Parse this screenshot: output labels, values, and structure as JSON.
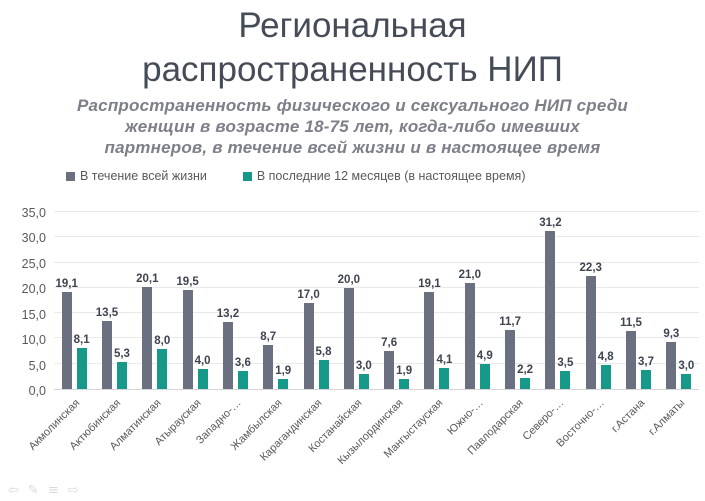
{
  "slide": {
    "title": {
      "text": "Региональная распространенность НИП",
      "lines": [
        "Региональная",
        "распространенность НИП"
      ]
    },
    "subtitle": {
      "text": "Распространенность физического и сексуального НИП среди женщин в возрасте 18-75 лет, когда-либо имевших партнеров, в течение всей жизни и в настоящее время",
      "lines": [
        "Распространенность физического и сексуального НИП среди",
        "женщин в возрасте 18-75 лет, когда-либо имевших",
        "партнеров, в течение всей жизни и в настоящее время"
      ]
    }
  },
  "chart_data": {
    "type": "bar",
    "title": "Региональная распространенность НИП",
    "categories": [
      "Акмолинская",
      "Актюбинская",
      "Алматинская",
      "Атырауская",
      "Западно-…",
      "Жамбылская",
      "Карагандинская",
      "Костанайская",
      "Кызылординская",
      "Мангыстауская",
      "Южно-…",
      "Павлодарская",
      "Северо-…",
      "Восточно-…",
      "г.Астана",
      "г.Алматы"
    ],
    "series": [
      {
        "name": "В течение всей жизни",
        "color": "#6b7080",
        "values": [
          19.1,
          13.5,
          20.1,
          19.5,
          13.2,
          8.7,
          17.0,
          20.0,
          7.6,
          19.1,
          21.0,
          11.7,
          31.2,
          22.3,
          11.5,
          9.3
        ]
      },
      {
        "name": "В последние 12 месяцев (в настоящее время)",
        "color": "#17998a",
        "values": [
          8.1,
          5.3,
          8.0,
          4.0,
          3.6,
          1.9,
          5.8,
          3.0,
          1.9,
          4.1,
          4.9,
          2.2,
          3.5,
          4.8,
          3.7,
          3.0
        ]
      }
    ],
    "xlabel": "",
    "ylabel": "",
    "ylim": [
      0,
      35
    ],
    "ytick_step": 5,
    "yticks": [
      "0,0",
      "5,0",
      "10,0",
      "15,0",
      "20,0",
      "25,0",
      "30,0",
      "35,0"
    ],
    "decimal_separator": ",",
    "grid": true,
    "data_labels": true,
    "legend_position": "top"
  },
  "nav_controls": {
    "icons": [
      {
        "name": "previous-slide-icon",
        "glyph": "⇦"
      },
      {
        "name": "pen-icon",
        "glyph": "✎"
      },
      {
        "name": "menu-icon",
        "glyph": "≡"
      },
      {
        "name": "next-slide-icon",
        "glyph": "⇨"
      }
    ]
  }
}
